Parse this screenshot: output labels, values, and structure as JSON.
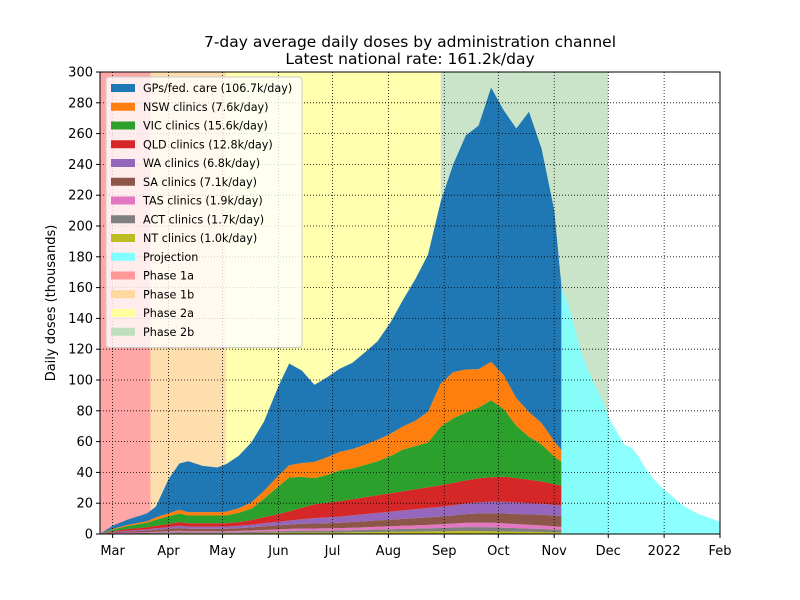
{
  "chart_data": {
    "type": "area",
    "title": "7-day average daily doses by administration channel",
    "subtitle": "Latest national rate: 161.2k/day",
    "xlabel": "",
    "ylabel": "Daily doses (thousands)",
    "ylim": [
      0,
      300
    ],
    "yticks": [
      0,
      20,
      40,
      60,
      80,
      100,
      120,
      140,
      160,
      180,
      200,
      220,
      240,
      260,
      280,
      300
    ],
    "xlim": [
      "2021-02-22",
      "2022-02-01"
    ],
    "xticks": [
      {
        "date": "2021-03-01",
        "label": "Mar"
      },
      {
        "date": "2021-04-01",
        "label": "Apr"
      },
      {
        "date": "2021-05-01",
        "label": "May"
      },
      {
        "date": "2021-06-01",
        "label": "Jun"
      },
      {
        "date": "2021-07-01",
        "label": "Jul"
      },
      {
        "date": "2021-08-01",
        "label": "Aug"
      },
      {
        "date": "2021-09-01",
        "label": "Sep"
      },
      {
        "date": "2021-10-01",
        "label": "Oct"
      },
      {
        "date": "2021-11-01",
        "label": "Nov"
      },
      {
        "date": "2021-12-01",
        "label": "Dec"
      },
      {
        "date": "2022-01-01",
        "label": "2022"
      },
      {
        "date": "2022-02-01",
        "label": "Feb"
      }
    ],
    "grid": true,
    "legend_position": "top-left",
    "phases": [
      {
        "name": "Phase 1a",
        "start": "2021-02-22",
        "end": "2021-03-22",
        "color": "#ff9896"
      },
      {
        "name": "Phase 1b",
        "start": "2021-03-22",
        "end": "2021-05-03",
        "color": "#ffd8a0"
      },
      {
        "name": "Phase 2a",
        "start": "2021-05-03",
        "end": "2021-08-30",
        "color": "#ffffa0"
      },
      {
        "name": "Phase 2b",
        "start": "2021-08-30",
        "end": "2021-12-01",
        "color": "#bfdfbf"
      }
    ],
    "stack_dates": [
      "2021-02-22",
      "2021-03-01",
      "2021-03-10",
      "2021-03-20",
      "2021-03-25",
      "2021-04-01",
      "2021-04-07",
      "2021-04-12",
      "2021-04-20",
      "2021-04-28",
      "2021-05-03",
      "2021-05-10",
      "2021-05-17",
      "2021-05-24",
      "2021-06-01",
      "2021-06-07",
      "2021-06-14",
      "2021-06-21",
      "2021-06-28",
      "2021-07-05",
      "2021-07-12",
      "2021-07-19",
      "2021-07-26",
      "2021-08-02",
      "2021-08-09",
      "2021-08-16",
      "2021-08-23",
      "2021-08-30",
      "2021-09-06",
      "2021-09-13",
      "2021-09-20",
      "2021-09-27",
      "2021-10-04",
      "2021-10-11",
      "2021-10-18",
      "2021-10-25",
      "2021-11-01",
      "2021-11-05"
    ],
    "series": [
      {
        "name": "NT clinics (1.0k/day)",
        "color": "#bcbd22",
        "values": [
          0,
          0.1,
          0.2,
          0.3,
          0.4,
          0.5,
          0.6,
          0.5,
          0.5,
          0.5,
          0.5,
          0.5,
          0.6,
          0.7,
          0.8,
          0.9,
          1,
          1,
          1,
          1,
          1.1,
          1.2,
          1.3,
          1.4,
          1.5,
          1.6,
          1.7,
          1.8,
          1.9,
          2,
          1.9,
          1.8,
          1.6,
          1.5,
          1.4,
          1.3,
          1.1,
          1
        ]
      },
      {
        "name": "ACT clinics (1.7k/day)",
        "color": "#7f7f7f",
        "values": [
          0,
          0.2,
          0.3,
          0.4,
          0.5,
          0.6,
          0.7,
          0.6,
          0.6,
          0.6,
          0.6,
          0.7,
          0.8,
          0.9,
          1,
          1.1,
          1.2,
          1.2,
          1.2,
          1.3,
          1.4,
          1.5,
          1.6,
          1.7,
          1.8,
          1.9,
          2,
          2.1,
          2.3,
          2.5,
          2.6,
          2.6,
          2.5,
          2.3,
          2.1,
          2,
          1.8,
          1.7
        ]
      },
      {
        "name": "TAS clinics (1.9k/day)",
        "color": "#e377c2",
        "values": [
          0,
          0.2,
          0.4,
          0.5,
          0.6,
          0.7,
          0.8,
          0.7,
          0.7,
          0.7,
          0.7,
          0.8,
          0.9,
          1,
          1.2,
          1.3,
          1.4,
          1.4,
          1.5,
          1.5,
          1.6,
          1.7,
          1.8,
          1.9,
          2,
          2.1,
          2.2,
          2.4,
          2.6,
          2.8,
          3,
          3,
          2.9,
          2.7,
          2.5,
          2.3,
          2.1,
          1.9
        ]
      },
      {
        "name": "SA clinics (7.1k/day)",
        "color": "#8c564b",
        "values": [
          0,
          0.5,
          0.8,
          1,
          1.2,
          1.5,
          1.8,
          1.6,
          1.6,
          1.6,
          1.6,
          1.8,
          2,
          2.4,
          2.6,
          2.8,
          3,
          3.2,
          3.3,
          3.5,
          3.7,
          3.9,
          4.1,
          4.3,
          4.5,
          4.7,
          4.9,
          5,
          5.3,
          5.6,
          5.9,
          6.1,
          6.3,
          6.5,
          6.7,
          6.9,
          7,
          7.1
        ]
      },
      {
        "name": "WA clinics (6.8k/day)",
        "color": "#9467bd",
        "values": [
          0,
          0.4,
          0.6,
          0.8,
          1,
          1.2,
          1.5,
          1.4,
          1.4,
          1.4,
          1.4,
          1.5,
          1.7,
          2,
          2.3,
          2.6,
          3,
          3.5,
          3.8,
          4,
          4.3,
          4.6,
          4.9,
          5.2,
          5.5,
          5.8,
          6.1,
          6.3,
          6.6,
          6.9,
          7.2,
          7.4,
          7.6,
          7.5,
          7.3,
          7.1,
          6.9,
          6.8
        ]
      },
      {
        "name": "QLD clinics (12.8k/day)",
        "color": "#d62728",
        "values": [
          0,
          0.5,
          1,
          1.3,
          1.6,
          2,
          2.4,
          2.2,
          2.2,
          2.2,
          2.2,
          2.5,
          3,
          4,
          5,
          6,
          7.5,
          9,
          9.5,
          10,
          10.5,
          11,
          11.5,
          12,
          12.5,
          13,
          13.5,
          14,
          14.5,
          15,
          15.5,
          16,
          16.3,
          15.8,
          15.2,
          14.5,
          13.5,
          12.8
        ]
      },
      {
        "name": "VIC clinics (15.6k/day)",
        "color": "#2ca02c",
        "values": [
          0,
          1,
          2,
          3,
          4,
          5,
          5.5,
          5,
          5,
          5,
          5,
          6,
          7.5,
          12,
          18,
          22,
          20,
          17,
          18,
          20,
          20,
          21,
          22,
          24,
          27,
          28,
          29,
          38,
          42,
          44,
          46,
          50,
          44,
          34,
          28,
          24,
          18,
          15.6
        ]
      },
      {
        "name": "NSW clinics (7.6k/day)",
        "color": "#ff7f0e",
        "values": [
          0,
          0.4,
          0.8,
          1,
          1.5,
          2,
          2.5,
          2.2,
          2.2,
          2.2,
          2.4,
          3,
          4,
          5,
          7,
          8,
          9,
          10.5,
          11.5,
          12,
          12.5,
          13,
          14,
          14.5,
          15,
          16.5,
          20,
          28,
          30,
          28,
          25,
          25,
          22,
          18,
          16,
          14,
          10,
          7.6
        ]
      },
      {
        "name": "GPs/fed. care (106.7k/day)",
        "color": "#1f77b4",
        "values": [
          0,
          2,
          3.5,
          5,
          7,
          22,
          30,
          33,
          30,
          29,
          31,
          34,
          39,
          45,
          58,
          66,
          60,
          50,
          52,
          54,
          56,
          60,
          64,
          72,
          82,
          92,
          102,
          118,
          135,
          152,
          158,
          178,
          172,
          175,
          195,
          178,
          150,
          106.7
        ]
      },
      {
        "name": "Projection",
        "color": "#7fffff",
        "dates": [
          "2021-11-05",
          "2021-11-08",
          "2021-11-12",
          "2021-11-16",
          "2021-11-20",
          "2021-11-24",
          "2021-11-28",
          "2021-12-02",
          "2021-12-06",
          "2021-12-10",
          "2021-12-14",
          "2021-12-18",
          "2021-12-22",
          "2021-12-26",
          "2021-12-30",
          "2022-01-05",
          "2022-01-10",
          "2022-01-15",
          "2022-01-20",
          "2022-01-25",
          "2022-02-01"
        ],
        "values": [
          160,
          152,
          136,
          118,
          106,
          96,
          86,
          74,
          66,
          58,
          56,
          50,
          42,
          36,
          31,
          25,
          20,
          16,
          13,
          11,
          8
        ]
      }
    ]
  }
}
